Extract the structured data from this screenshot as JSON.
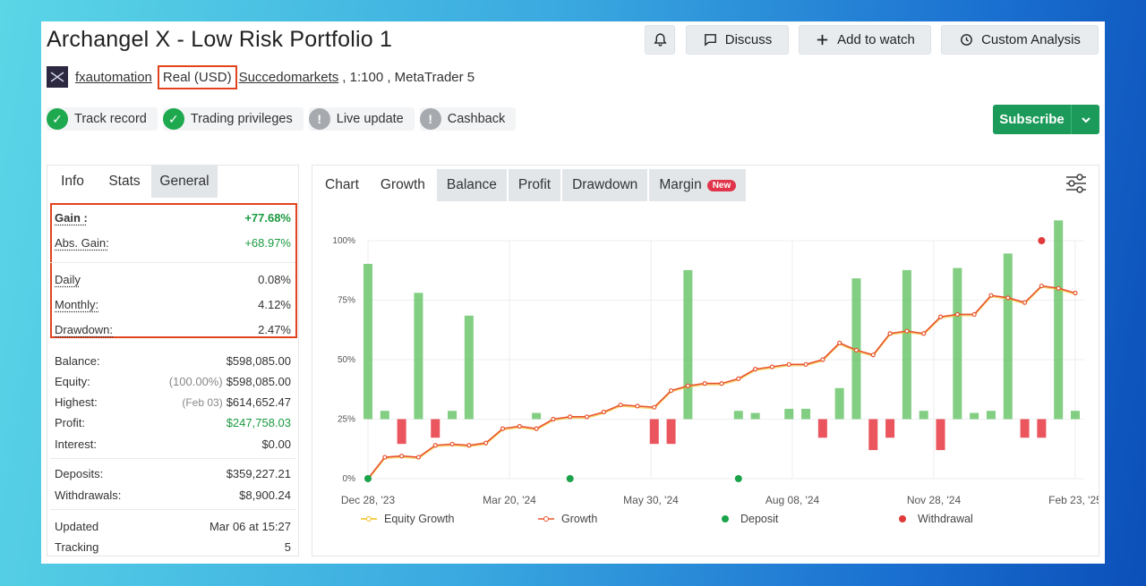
{
  "header": {
    "title": "Archangel X - Low Risk Portfolio 1",
    "buttons": {
      "discuss": "Discuss",
      "add_watch": "Add to watch",
      "custom": "Custom Analysis"
    }
  },
  "account": {
    "user": "fxautomation",
    "type": "Real (USD)",
    "broker": "Succedomarkets",
    "details": ", 1:100 , MetaTrader 5"
  },
  "badges": [
    {
      "label": "Track record",
      "status": "ok"
    },
    {
      "label": "Trading privileges",
      "status": "ok"
    },
    {
      "label": "Live update",
      "status": "warn"
    },
    {
      "label": "Cashback",
      "status": "warn"
    }
  ],
  "subscribe_label": "Subscribe",
  "left_tabs": [
    "Info",
    "Stats",
    "General"
  ],
  "stats": {
    "gain_k": "Gain :",
    "gain_v": "+77.68%",
    "absgain_k": "Abs. Gain:",
    "absgain_v": "+68.97%",
    "daily_k": "Daily",
    "daily_v": "0.08%",
    "monthly_k": "Monthly:",
    "monthly_v": "4.12%",
    "drawdown_k": "Drawdown:",
    "drawdown_v": "2.47%",
    "balance_k": "Balance:",
    "balance_v": "$598,085.00",
    "equity_k": "Equity:",
    "equity_pre": "(100.00%)",
    "equity_v": "$598,085.00",
    "highest_k": "Highest:",
    "highest_pre": "(Feb 03)",
    "highest_v": "$614,652.47",
    "profit_k": "Profit:",
    "profit_v": "$247,758.03",
    "interest_k": "Interest:",
    "interest_v": "$0.00",
    "deposits_k": "Deposits:",
    "deposits_v": "$359,227.21",
    "withdrawals_k": "Withdrawals:",
    "withdrawals_v": "$8,900.24",
    "updated_k": "Updated",
    "updated_v": "Mar 06 at 15:27",
    "tracking_k": "Tracking",
    "tracking_v": "5"
  },
  "chart_tabs": [
    "Chart",
    "Growth",
    "Balance",
    "Profit",
    "Drawdown",
    "Margin"
  ],
  "new_label": "New",
  "legend": [
    "Equity Growth",
    "Growth",
    "Deposit",
    "Withdrawal"
  ],
  "colors": {
    "growth": "#e8532d",
    "equity": "#f0c020",
    "bar_pos": "#6cc56c",
    "bar_neg": "#e8434d",
    "deposit": "#1ba34a",
    "withdrawal": "#e03a3a",
    "accent": "#1b9a5a"
  },
  "chart_data": {
    "type": "line",
    "x_ticks": [
      "Dec 28, '23",
      "Mar 20, '24",
      "May 30, '24",
      "Aug 08, '24",
      "Nov 28, '24",
      "Feb 23, '25"
    ],
    "y_ticks": [
      "0%",
      "25%",
      "50%",
      "75%",
      "100%"
    ],
    "ylim": [
      0,
      100
    ],
    "growth": [
      0,
      9,
      9.5,
      9,
      14,
      14.5,
      14,
      15,
      21,
      22,
      21,
      25,
      26,
      26,
      28,
      31,
      30.5,
      30,
      37,
      39,
      40,
      40,
      42,
      46,
      47,
      48,
      48,
      50,
      57,
      54,
      52,
      61,
      62,
      61,
      68,
      69,
      69,
      77,
      76,
      74,
      81,
      80,
      78
    ],
    "bars": [
      75,
      4,
      -4,
      61,
      -3,
      4,
      50,
      0,
      0,
      0,
      3,
      0,
      0,
      0,
      0,
      0,
      0,
      -4,
      -4,
      72,
      0,
      0,
      4,
      3,
      0,
      5,
      5,
      -3,
      15,
      68,
      -5,
      -3,
      72,
      4,
      -5,
      73,
      3,
      4,
      80,
      -3,
      -3,
      96,
      4
    ],
    "deposit_points": [
      0,
      12,
      22
    ],
    "withdrawal_points": [
      40
    ]
  }
}
